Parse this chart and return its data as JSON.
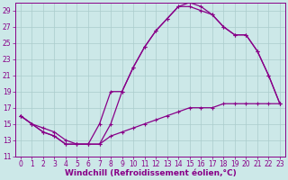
{
  "xlabel": "Windchill (Refroidissement éolien,°C)",
  "line_color": "#880088",
  "bg_color": "#cce8e8",
  "grid_color": "#aacccc",
  "xlim": [
    -0.5,
    23.5
  ],
  "ylim": [
    11,
    30
  ],
  "xticks": [
    0,
    1,
    2,
    3,
    4,
    5,
    6,
    7,
    8,
    9,
    10,
    11,
    12,
    13,
    14,
    15,
    16,
    17,
    18,
    19,
    20,
    21,
    22,
    23
  ],
  "yticks": [
    11,
    13,
    15,
    17,
    19,
    21,
    23,
    25,
    27,
    29
  ],
  "line1_x": [
    0,
    1,
    2,
    3,
    4,
    5,
    6,
    7,
    8,
    9,
    10,
    11,
    12,
    13,
    14,
    15,
    16,
    17,
    18,
    19,
    20,
    21,
    22,
    23
  ],
  "line1_y": [
    16,
    15,
    14,
    13.5,
    12.5,
    12.5,
    12.5,
    12.5,
    15,
    19,
    22,
    24.5,
    26.5,
    28,
    29.5,
    30,
    29.5,
    28.5,
    27,
    26,
    26,
    24,
    21,
    17.5
  ],
  "line2_x": [
    0,
    1,
    2,
    3,
    4,
    5,
    6,
    7,
    8,
    9,
    10,
    11,
    12,
    13,
    14,
    15,
    16,
    17,
    18,
    19,
    20,
    21,
    22,
    23
  ],
  "line2_y": [
    16,
    15,
    14,
    13.5,
    12.5,
    12.5,
    12.5,
    15,
    19,
    19,
    22,
    24.5,
    26.5,
    28,
    29.5,
    29.5,
    29,
    28.5,
    27,
    26,
    26,
    24,
    21,
    17.5
  ],
  "line3_x": [
    0,
    1,
    2,
    3,
    4,
    5,
    6,
    7,
    8,
    9,
    10,
    11,
    12,
    13,
    14,
    15,
    16,
    17,
    18,
    19,
    20,
    21,
    22,
    23
  ],
  "line3_y": [
    16,
    15,
    14.5,
    14,
    13,
    12.5,
    12.5,
    12.5,
    13.5,
    14,
    14.5,
    15,
    15.5,
    16,
    16.5,
    17,
    17,
    17,
    17.5,
    17.5,
    17.5,
    17.5,
    17.5,
    17.5
  ],
  "marker": "+",
  "markersize": 3,
  "linewidth": 0.9,
  "font_color": "#880088",
  "tick_fontsize": 5.5,
  "label_fontsize": 6.5
}
